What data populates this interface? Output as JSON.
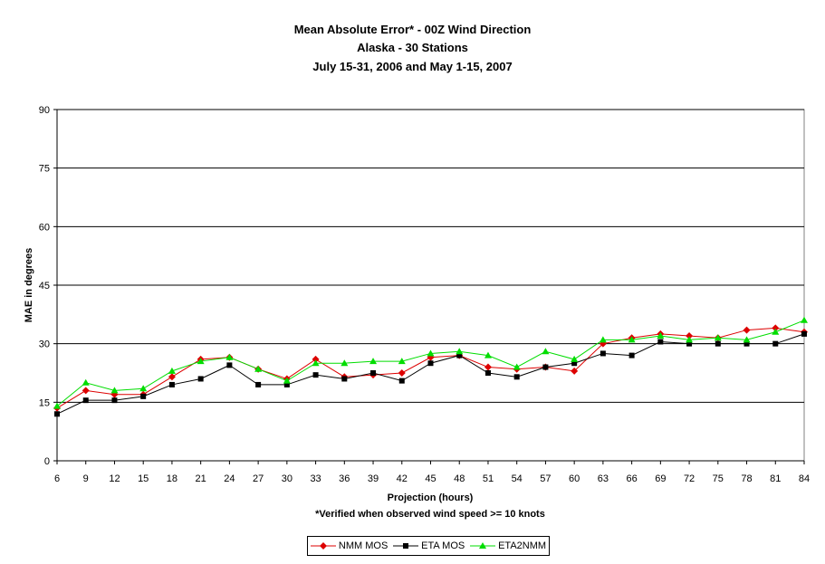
{
  "chart_data": {
    "type": "line",
    "title": "Mean Absolute Error* - 00Z Wind Direction",
    "subtitle_lines": [
      "Alaska - 30 Stations",
      "July 15-31, 2006 and May 1-15, 2007"
    ],
    "xlabel": "Projection (hours)",
    "footnote": "*Verified when observed wind speed >= 10 knots",
    "ylabel": "MAE in degrees",
    "ylim": [
      0,
      90
    ],
    "yticks": [
      0,
      15,
      30,
      45,
      60,
      75,
      90
    ],
    "grid": true,
    "legend_position": "bottom",
    "categories": [
      "6",
      "9",
      "12",
      "15",
      "18",
      "21",
      "24",
      "27",
      "30",
      "33",
      "36",
      "39",
      "42",
      "45",
      "48",
      "51",
      "54",
      "57",
      "60",
      "63",
      "66",
      "69",
      "72",
      "75",
      "78",
      "81",
      "84"
    ],
    "series": [
      {
        "name": "NMM MOS",
        "color": "#dd0000",
        "marker": "diamond",
        "values": [
          13.5,
          18,
          17,
          17,
          21.5,
          26,
          26.5,
          23.5,
          21,
          26,
          21.5,
          22,
          22.5,
          26.5,
          27,
          24,
          23.5,
          24,
          23,
          30,
          31.5,
          32.5,
          32,
          31.5,
          33.5,
          34,
          33
        ]
      },
      {
        "name": "ETA MOS",
        "color": "#000000",
        "marker": "square",
        "values": [
          12,
          15.5,
          15.5,
          16.5,
          19.5,
          21,
          24.5,
          19.5,
          19.5,
          22,
          21,
          22.5,
          20.5,
          25,
          27,
          22.5,
          21.5,
          24,
          25,
          27.5,
          27,
          30.5,
          30,
          30,
          30,
          30,
          32.5
        ]
      },
      {
        "name": "ETA2NMM",
        "color": "#00dd00",
        "marker": "triangle",
        "values": [
          14,
          20,
          18,
          18.5,
          23,
          25.5,
          26.5,
          23.5,
          20.5,
          25,
          25,
          25.5,
          25.5,
          27.5,
          28,
          27,
          24,
          28,
          26,
          31,
          31,
          32,
          31,
          31.5,
          31,
          33,
          36
        ]
      }
    ]
  }
}
